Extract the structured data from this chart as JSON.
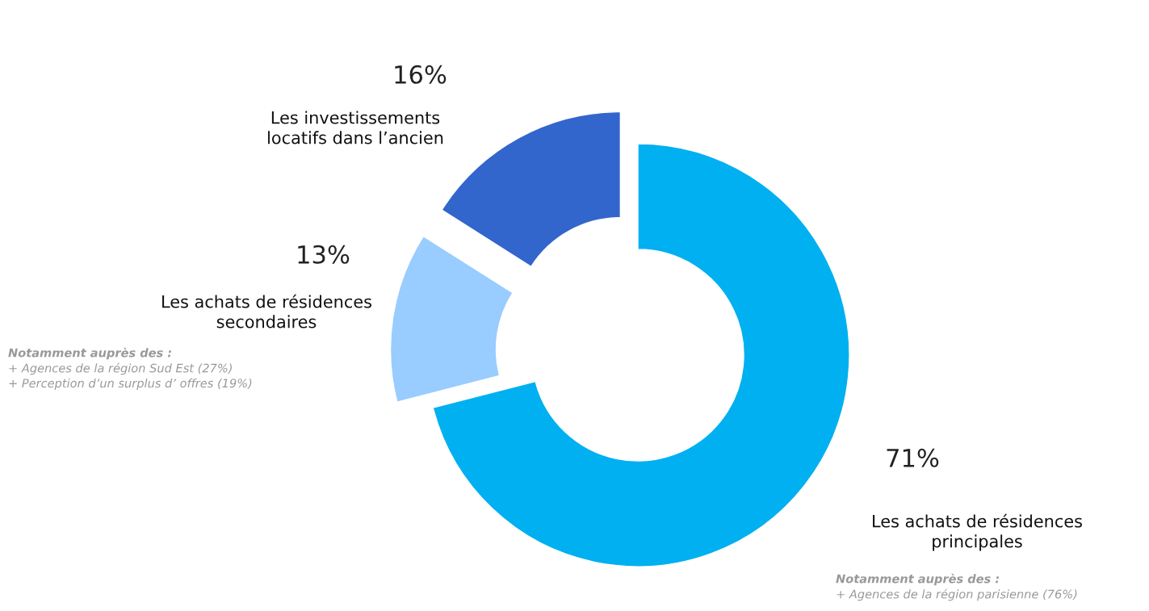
{
  "chart_data": {
    "type": "donut",
    "categories": [
      "Les achats de résidences\nprincipales",
      "Les achats de résidences\nsecondaires",
      "Les investissements\nlocatifs dans l’ancien"
    ],
    "values": [
      71,
      13,
      16
    ],
    "value_labels": [
      "71%",
      "13%",
      "16%"
    ],
    "colors": [
      "#00b0f0",
      "#99ccff",
      "#3366cc"
    ],
    "annotations": [
      "Notamment auprès des :",
      "+ Agences de la région parisienne (76%)",
      "Notamment auprès des :",
      "+ Agences de la région Sud Est (27%)",
      "+ Perception d’un surplus d’ offres (19%)"
    ]
  }
}
